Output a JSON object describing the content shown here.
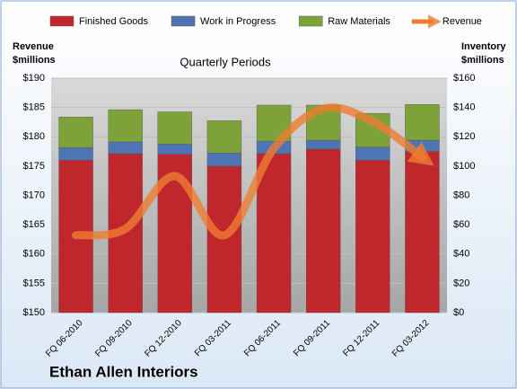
{
  "chart_data": {
    "type": "bar",
    "title": "Quarterly Periods",
    "footer": "Ethan Allen Interiors",
    "y_label": [
      "Revenue",
      "$millions"
    ],
    "y2_label": [
      "Inventory",
      "$millions"
    ],
    "categories": [
      "FQ 06-2010",
      "FQ 09-2010",
      "FQ 12-2010",
      "FQ 03-2011",
      "FQ 06-2011",
      "FQ 09-2011",
      "FQ 12-2011",
      "FQ 03-2012"
    ],
    "series": [
      {
        "name": "Finished Goods",
        "color": "#c0272d",
        "axis": "y2",
        "values": [
          104,
          108.5,
          108,
          100,
          108.5,
          111.6,
          104,
          110
        ]
      },
      {
        "name": "Work in Progress",
        "color": "#4f74b3",
        "axis": "y2",
        "values": [
          8.6,
          8,
          7,
          9,
          8.5,
          6,
          9,
          7.7
        ]
      },
      {
        "name": "Raw Materials",
        "color": "#7ea23a",
        "axis": "y2",
        "values": [
          20.9,
          22,
          22,
          22,
          24.6,
          24,
          23,
          24.3
        ]
      },
      {
        "name": "Revenue",
        "color": "#ed7d31",
        "axis": "y",
        "type": "line",
        "values": [
          163.2,
          164.3,
          173.3,
          163.2,
          178,
          184.8,
          182.6,
          176.5
        ]
      }
    ],
    "ylim": [
      150,
      190
    ],
    "yticks": [
      {
        "value": 150,
        "label": "$150"
      },
      {
        "value": 155,
        "label": "$155"
      },
      {
        "value": 160,
        "label": "$160"
      },
      {
        "value": 165,
        "label": "$165"
      },
      {
        "value": 170,
        "label": "$170"
      },
      {
        "value": 175,
        "label": "$175"
      },
      {
        "value": 180,
        "label": "$180"
      },
      {
        "value": 185,
        "label": "$185"
      },
      {
        "value": 190,
        "label": "$190"
      }
    ],
    "y2lim": [
      0,
      160
    ],
    "y2ticks": [
      {
        "value": 0,
        "label": "$0"
      },
      {
        "value": 20,
        "label": "$20"
      },
      {
        "value": 40,
        "label": "$40"
      },
      {
        "value": 60,
        "label": "$60"
      },
      {
        "value": 80,
        "label": "$80"
      },
      {
        "value": 100,
        "label": "$100"
      },
      {
        "value": 120,
        "label": "$120"
      },
      {
        "value": 140,
        "label": "$140"
      },
      {
        "value": 160,
        "label": "$160"
      }
    ],
    "grid": true
  }
}
